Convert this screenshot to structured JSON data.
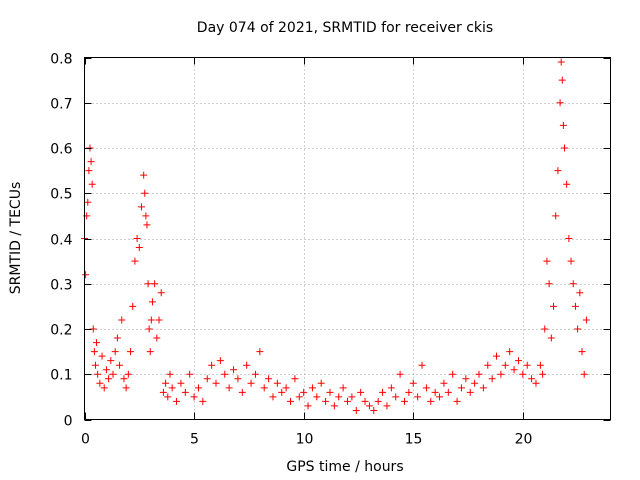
{
  "chart_data": {
    "type": "scatter",
    "title": "Day 074 of 2021, SRMTID for receiver ckis",
    "xlabel": "GPS time / hours",
    "ylabel": "SRMTID / TECUs",
    "xlim": [
      0,
      24
    ],
    "ylim": [
      0,
      0.8
    ],
    "x_ticks": [
      0,
      5,
      10,
      15,
      20
    ],
    "x_tick_labels": [
      "0",
      "5",
      "10",
      "15",
      "20"
    ],
    "y_ticks": [
      0,
      0.1,
      0.2,
      0.3,
      0.4,
      0.5,
      0.6,
      0.7,
      0.8
    ],
    "y_tick_labels": [
      "0",
      "0.1",
      "0.2",
      "0.3",
      "0.4",
      "0.5",
      "0.6",
      "0.7",
      "0.8"
    ],
    "grid": true,
    "marker": "plus",
    "series": [
      {
        "name": "SRMTID",
        "color": "#ff0000",
        "x": [
          0.0,
          0.05,
          0.1,
          0.15,
          0.2,
          0.25,
          0.3,
          0.35,
          0.4,
          0.45,
          0.5,
          0.55,
          0.6,
          0.7,
          0.8,
          0.9,
          1.0,
          1.1,
          1.2,
          1.3,
          1.4,
          1.5,
          1.6,
          1.7,
          1.8,
          1.9,
          2.0,
          2.1,
          2.2,
          2.3,
          2.4,
          2.5,
          2.6,
          2.7,
          2.75,
          2.8,
          2.85,
          2.9,
          2.95,
          3.0,
          3.05,
          3.1,
          3.2,
          3.3,
          3.4,
          3.5,
          3.6,
          3.7,
          3.8,
          3.9,
          4.0,
          4.2,
          4.4,
          4.6,
          4.8,
          5.0,
          5.2,
          5.4,
          5.6,
          5.8,
          6.0,
          6.2,
          6.4,
          6.6,
          6.8,
          7.0,
          7.2,
          7.4,
          7.6,
          7.8,
          8.0,
          8.2,
          8.4,
          8.6,
          8.8,
          9.0,
          9.2,
          9.4,
          9.6,
          9.8,
          10.0,
          10.2,
          10.4,
          10.6,
          10.8,
          11.0,
          11.2,
          11.4,
          11.6,
          11.8,
          12.0,
          12.2,
          12.4,
          12.6,
          12.8,
          13.0,
          13.2,
          13.4,
          13.6,
          13.8,
          14.0,
          14.2,
          14.4,
          14.6,
          14.8,
          15.0,
          15.2,
          15.4,
          15.6,
          15.8,
          16.0,
          16.2,
          16.4,
          16.6,
          16.8,
          17.0,
          17.2,
          17.4,
          17.6,
          17.8,
          18.0,
          18.2,
          18.4,
          18.6,
          18.8,
          19.0,
          19.2,
          19.4,
          19.6,
          19.8,
          20.0,
          20.2,
          20.4,
          20.6,
          20.8,
          20.9,
          21.0,
          21.1,
          21.2,
          21.3,
          21.4,
          21.5,
          21.6,
          21.7,
          21.75,
          21.8,
          21.85,
          21.9,
          22.0,
          22.1,
          22.2,
          22.3,
          22.4,
          22.5,
          22.6,
          22.7,
          22.8,
          22.9
        ],
        "y": [
          0.4,
          0.32,
          0.45,
          0.48,
          0.55,
          0.6,
          0.57,
          0.52,
          0.2,
          0.15,
          0.12,
          0.17,
          0.1,
          0.08,
          0.14,
          0.07,
          0.11,
          0.09,
          0.13,
          0.1,
          0.15,
          0.18,
          0.12,
          0.22,
          0.09,
          0.07,
          0.1,
          0.15,
          0.25,
          0.35,
          0.4,
          0.38,
          0.47,
          0.54,
          0.5,
          0.45,
          0.43,
          0.3,
          0.2,
          0.15,
          0.22,
          0.26,
          0.3,
          0.18,
          0.22,
          0.28,
          0.06,
          0.08,
          0.05,
          0.1,
          0.07,
          0.04,
          0.08,
          0.06,
          0.1,
          0.05,
          0.07,
          0.04,
          0.09,
          0.12,
          0.08,
          0.13,
          0.1,
          0.07,
          0.11,
          0.09,
          0.06,
          0.12,
          0.08,
          0.1,
          0.15,
          0.07,
          0.09,
          0.05,
          0.08,
          0.06,
          0.07,
          0.04,
          0.09,
          0.05,
          0.06,
          0.03,
          0.07,
          0.05,
          0.08,
          0.04,
          0.06,
          0.03,
          0.05,
          0.07,
          0.04,
          0.05,
          0.02,
          0.06,
          0.04,
          0.03,
          0.02,
          0.04,
          0.06,
          0.03,
          0.07,
          0.05,
          0.1,
          0.04,
          0.06,
          0.08,
          0.05,
          0.12,
          0.07,
          0.04,
          0.06,
          0.05,
          0.08,
          0.06,
          0.1,
          0.04,
          0.07,
          0.09,
          0.06,
          0.08,
          0.1,
          0.07,
          0.12,
          0.09,
          0.14,
          0.1,
          0.12,
          0.15,
          0.11,
          0.13,
          0.1,
          0.12,
          0.09,
          0.08,
          0.12,
          0.1,
          0.2,
          0.35,
          0.3,
          0.18,
          0.25,
          0.45,
          0.55,
          0.7,
          0.79,
          0.75,
          0.65,
          0.6,
          0.52,
          0.4,
          0.35,
          0.3,
          0.25,
          0.2,
          0.28,
          0.15,
          0.1,
          0.22
        ]
      }
    ]
  }
}
